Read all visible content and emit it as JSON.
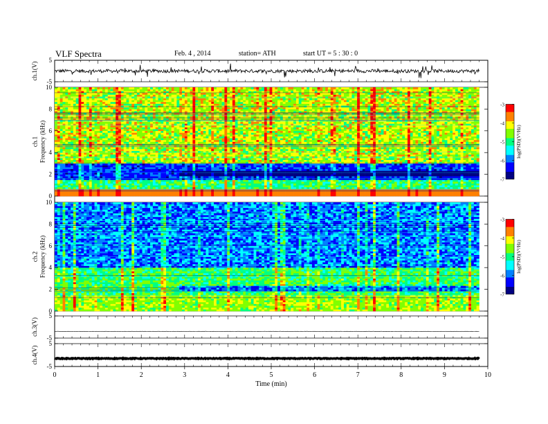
{
  "header": {
    "title": "VLF  Spectra",
    "date": "Feb. 4  , 2014",
    "station": "station= ATH",
    "start": "start  UT  =   5  : 30 : 0"
  },
  "chart_data": [
    {
      "type": "line",
      "panel": "ch1-waveform",
      "ylabel": "ch.1(V)",
      "ylim": [
        -5,
        5
      ],
      "yticks": [
        "5",
        "-5"
      ],
      "xlim": [
        0,
        10
      ],
      "trace_level": 0
    },
    {
      "type": "heatmap",
      "panel": "ch1-spectrogram",
      "ylabel": "ch.1\nFrequency  (kHz)",
      "ylim": [
        0,
        10
      ],
      "xlim": [
        0,
        9.8
      ],
      "yticks": [
        "0",
        "2",
        "4",
        "6",
        "8",
        "10"
      ],
      "colorbar": {
        "label": "log(PSD)(V²/Hz)",
        "range": [
          -7,
          -3
        ],
        "ticks": [
          "-3",
          "-4",
          "-5",
          "-6",
          "-7"
        ]
      },
      "step_time_min": 2.85
    },
    {
      "type": "heatmap",
      "panel": "ch2-spectrogram",
      "ylabel": "ch.2\nFrequency  (kHz)",
      "ylim": [
        0,
        10
      ],
      "xlim": [
        0,
        9.8
      ],
      "yticks": [
        "0",
        "2",
        "4",
        "6",
        "8",
        "10"
      ],
      "colorbar": {
        "label": "log(PSD)(V²/Hz)",
        "range": [
          -7,
          -3
        ],
        "ticks": [
          "-3",
          "-4",
          "-5",
          "-6",
          "-7"
        ]
      },
      "step_time_min": 2.85
    },
    {
      "type": "line",
      "panel": "ch3-waveform",
      "ylabel": "ch.3(V)",
      "ylim": [
        -5,
        5
      ],
      "yticks": [
        "5",
        "-5"
      ],
      "xlim": [
        0,
        10
      ],
      "trace_level": -2
    },
    {
      "type": "line",
      "panel": "ch4-waveform",
      "ylabel": "ch.4(V)",
      "ylim": [
        -5,
        5
      ],
      "yticks": [
        "5",
        "-5"
      ],
      "xlim": [
        0,
        10
      ],
      "trace_level": -1.5
    }
  ],
  "xaxis": {
    "label": "Time  (min)",
    "ticks": [
      "0",
      "1",
      "2",
      "3",
      "4",
      "5",
      "6",
      "7",
      "8",
      "9",
      "10"
    ]
  },
  "colors": {
    "colormap": [
      "#000080",
      "#0000ff",
      "#0080ff",
      "#00ffff",
      "#00ff80",
      "#80ff00",
      "#ffff00",
      "#ff8000",
      "#ff0000",
      "#ffffff"
    ]
  }
}
